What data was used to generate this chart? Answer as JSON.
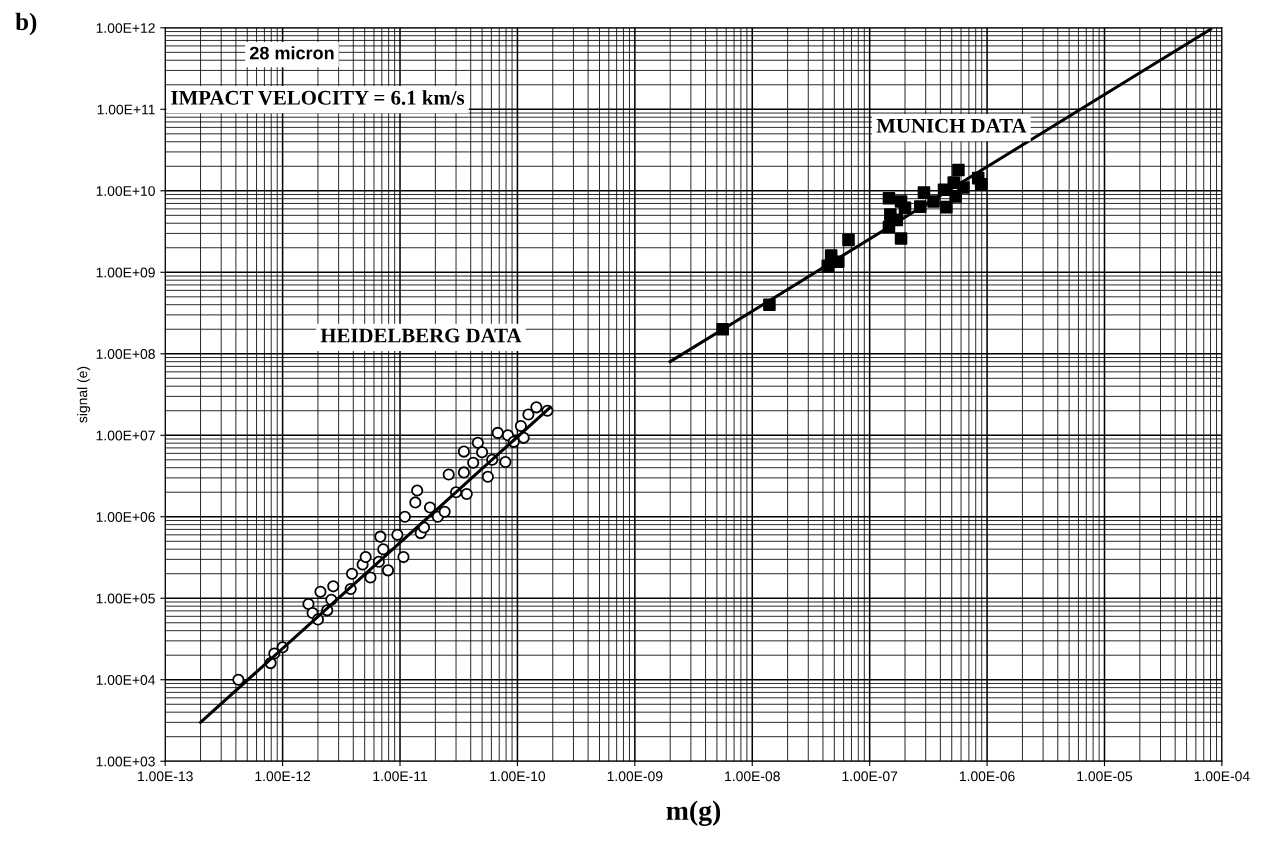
{
  "chart_data": {
    "type": "scatter",
    "xlabel": "m(g)",
    "ylabel": "signal (e)",
    "log": "xy",
    "grid": true,
    "xlim": [
      1e-13,
      0.0001
    ],
    "ylim": [
      1000,
      1000000000000.0
    ],
    "xticks": [
      {
        "value": 1e-13,
        "label": "1.00E-13"
      },
      {
        "value": 1e-12,
        "label": "1.00E-12"
      },
      {
        "value": 1e-11,
        "label": "1.00E-11"
      },
      {
        "value": 1e-10,
        "label": "1.00E-10"
      },
      {
        "value": 1e-09,
        "label": "1.00E-09"
      },
      {
        "value": 1e-08,
        "label": "1.00E-08"
      },
      {
        "value": 1e-07,
        "label": "1.00E-07"
      },
      {
        "value": 1e-06,
        "label": "1.00E-06"
      },
      {
        "value": 1e-05,
        "label": "1.00E-05"
      },
      {
        "value": 0.0001,
        "label": "1.00E-04"
      }
    ],
    "yticks": [
      {
        "value": 1000.0,
        "label": "1.00E+03"
      },
      {
        "value": 10000.0,
        "label": "1.00E+04"
      },
      {
        "value": 100000.0,
        "label": "1.00E+05"
      },
      {
        "value": 1000000.0,
        "label": "1.00E+06"
      },
      {
        "value": 10000000.0,
        "label": "1.00E+07"
      },
      {
        "value": 100000000.0,
        "label": "1.00E+08"
      },
      {
        "value": 1000000000.0,
        "label": "1.00E+09"
      },
      {
        "value": 10000000000.0,
        "label": "1.00E+10"
      },
      {
        "value": 100000000000.0,
        "label": "1.00E+11"
      },
      {
        "value": 1000000000000.0,
        "label": "1.00E+12"
      }
    ],
    "annotations": [
      "b)",
      "28 micron",
      "IMPACT VELOCITY = 6.1 km/s",
      "HEIDELBERG DATA",
      "MUNICH DATA"
    ],
    "series": [
      {
        "type": "scatter",
        "marker": "circle",
        "color": "#000000",
        "x": [
          4.2e-13,
          7.9e-13,
          8.5e-13,
          1e-12,
          1.66e-12,
          1.8e-12,
          2e-12,
          2.1e-12,
          2.4e-12,
          2.6e-12,
          2.7e-12,
          3.8e-12,
          3.9e-12,
          4.8e-12,
          5.1e-12,
          5.6e-12,
          6.8e-12,
          6.6e-12,
          7.9e-12,
          7.2e-12,
          9.5e-12,
          1.07e-11,
          1.1e-11,
          1.35e-11,
          1.4e-11,
          1.5e-11,
          1.6e-11,
          1.8e-11,
          2.1e-11,
          2.4e-11,
          2.6e-11,
          3e-11,
          3.5e-11,
          3.5e-11,
          3.7e-11,
          4.6e-11,
          4.2e-11,
          5e-11,
          5.6e-11,
          6.1e-11,
          6.8e-11,
          7.9e-11,
          8.3e-11,
          9.3e-11,
          1.07e-10,
          1.13e-10,
          1.24e-10,
          1.45e-10,
          1.8e-10
        ],
        "values": [
          10000.0,
          16000.0,
          21000.0,
          25000.0,
          85000.0,
          66000.0,
          55000.0,
          120000.0,
          71000.0,
          96000.0,
          140000.0,
          130000.0,
          200000.0,
          260000.0,
          320000.0,
          180000.0,
          570000.0,
          280000.0,
          220000.0,
          400000.0,
          600000.0,
          320000.0,
          1000000.0,
          1500000.0,
          2100000.0,
          630000.0,
          740000.0,
          1300000.0,
          1000000.0,
          1150000.0,
          3300000.0,
          2000000.0,
          3500000.0,
          6300000.0,
          1900000.0,
          8100000.0,
          4600000.0,
          6200000.0,
          3100000.0,
          5000000.0,
          10700000.0,
          4700000.0,
          10000000.0,
          8300000.0,
          13000000.0,
          9300000.0,
          18000000.0,
          22000000.0,
          20000000.0
        ]
      },
      {
        "type": "line",
        "color": "#000000",
        "x": [
          2e-13,
          1.9e-10
        ],
        "values": [
          3000.0,
          22000000.0
        ]
      },
      {
        "type": "scatter",
        "marker": "square",
        "color": "#000000",
        "x": [
          5.6e-09,
          1.4e-08,
          6.6e-08,
          4.7e-08,
          4.4e-08,
          5.4e-08,
          1.46e-07,
          1.85e-07,
          2e-07,
          1.5e-07,
          1.46e-07,
          1.85e-07,
          1.7e-07,
          2.9e-07,
          2.7e-07,
          3.5e-07,
          4.3e-07,
          4.5e-07,
          5.4e-07,
          5.7e-07,
          5.2e-07,
          6.3e-07,
          7.7e-07,
          8.9e-07,
          8.4e-07
        ],
        "values": [
          200000000.0,
          400000000.0,
          2500000000.0,
          1600000000.0,
          1200000000.0,
          1350000000.0,
          8100000000.0,
          7400000000.0,
          6200000000.0,
          5100000000.0,
          3600000000.0,
          2600000000.0,
          4400000000.0,
          9500000000.0,
          6400000000.0,
          7400000000.0,
          10300000000.0,
          6300000000.0,
          8500000000.0,
          18000000000.0,
          12600000000.0,
          11000000000.0,
          null,
          12000000000.0,
          14300000000.0
        ]
      },
      {
        "type": "line",
        "color": "#000000",
        "x": [
          2e-09,
          8e-05
        ],
        "values": [
          80000000.0,
          960000000000.0
        ]
      }
    ]
  }
}
